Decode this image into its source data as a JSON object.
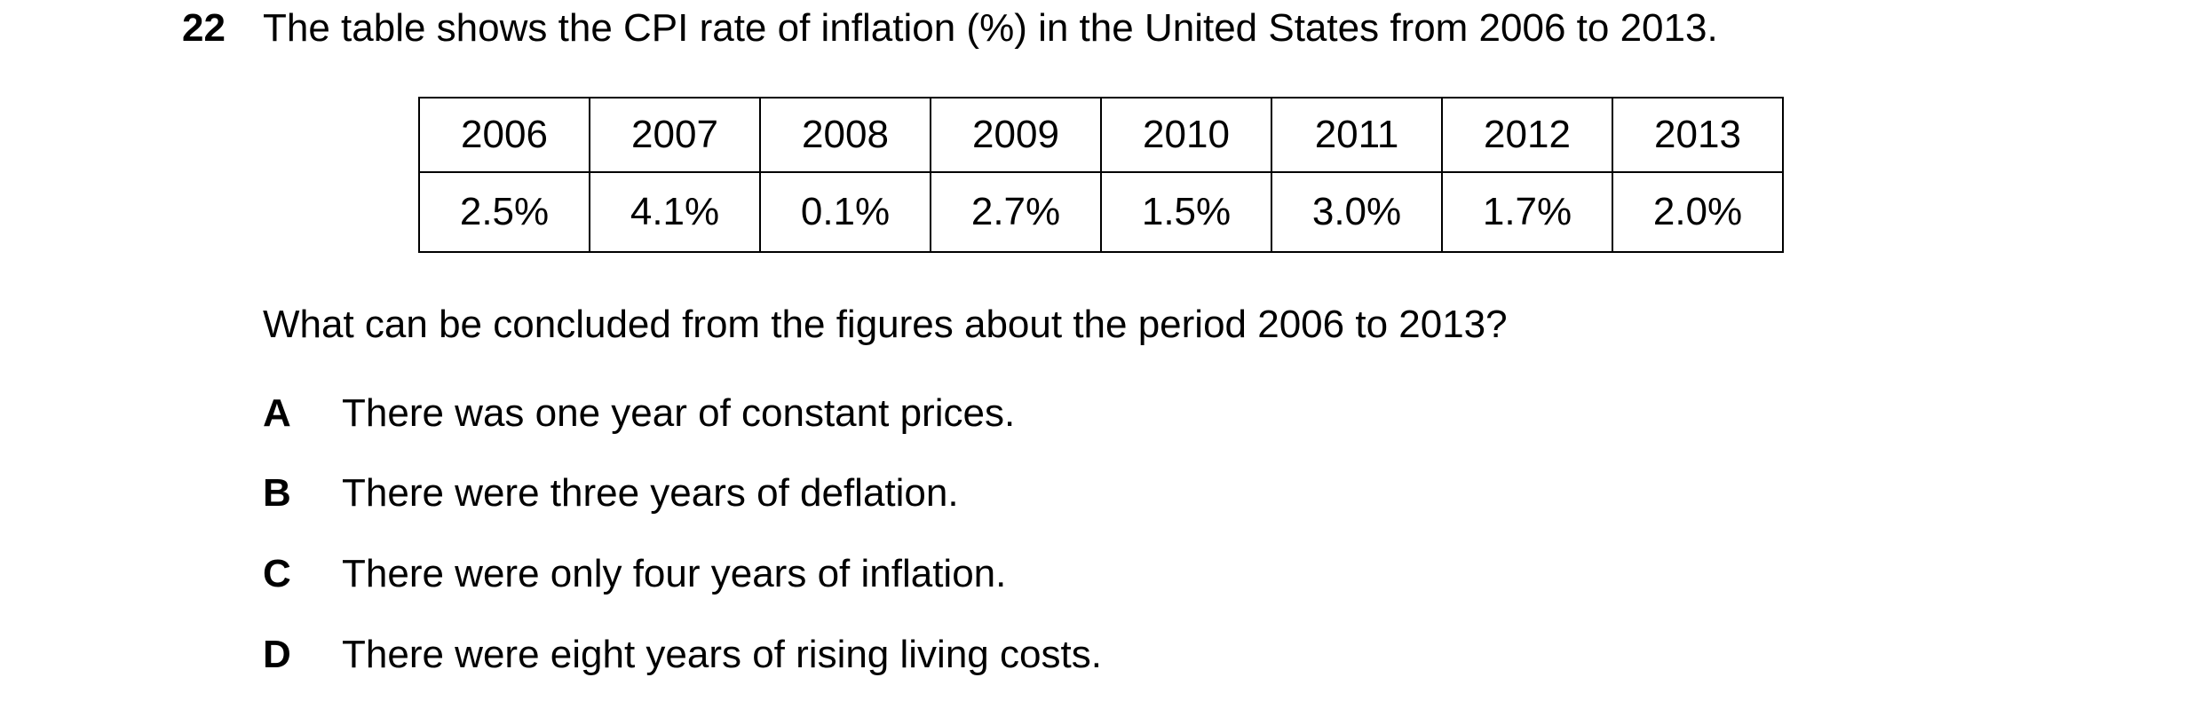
{
  "question": {
    "number": "22",
    "stem": "The table shows the CPI rate of inflation (%) in the United States from 2006 to 2013.",
    "table": {
      "years": [
        "2006",
        "2007",
        "2008",
        "2009",
        "2010",
        "2011",
        "2012",
        "2013"
      ],
      "rates": [
        "2.5%",
        "4.1%",
        "0.1%",
        "2.7%",
        "1.5%",
        "3.0%",
        "1.7%",
        "2.0%"
      ]
    },
    "prompt": "What can be concluded from the figures about the period 2006 to 2013?",
    "options": [
      {
        "letter": "A",
        "text": "There was one year of constant prices."
      },
      {
        "letter": "B",
        "text": "There were three years of deflation."
      },
      {
        "letter": "C",
        "text": "There were only four years of inflation."
      },
      {
        "letter": "D",
        "text": "There were eight years of rising living costs."
      }
    ]
  }
}
